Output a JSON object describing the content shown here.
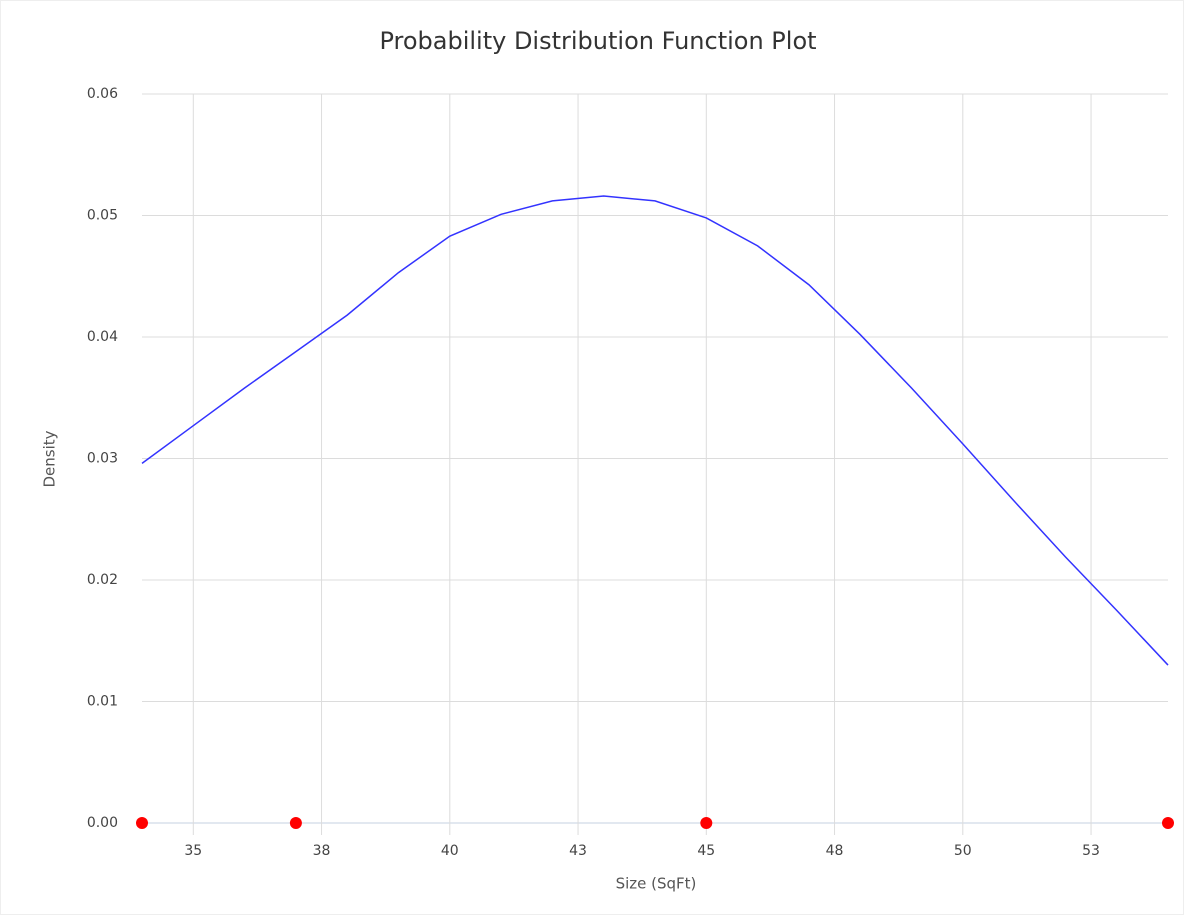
{
  "chart_data": {
    "type": "line",
    "title": "Probability Distribution Function Plot",
    "x_label": "Size (SqFt)",
    "y_label": "Density",
    "xlim": [
      34,
      54
    ],
    "ylim": [
      0,
      0.06
    ],
    "xticks": [
      35,
      {
        "value": 37.5,
        "label": "38"
      },
      40,
      {
        "value": 42.5,
        "label": "43"
      },
      45,
      {
        "value": 47.5,
        "label": "48"
      },
      50,
      {
        "value": 52.5,
        "label": "53"
      }
    ],
    "yticks": [
      {
        "value": 0,
        "label": "0.00"
      },
      0.01,
      0.02,
      0.03,
      0.04,
      0.05,
      0.06
    ],
    "grid": true,
    "series": [
      {
        "type": "line",
        "color": "#3333ff",
        "x": [
          34,
          35,
          36,
          37,
          38,
          39,
          40,
          41,
          42,
          43,
          44,
          45,
          46,
          47,
          48,
          49,
          50,
          51,
          52,
          53,
          54
        ],
        "values": [
          0.0296,
          0.0327,
          0.0358,
          0.0388,
          0.0418,
          0.0453,
          0.0483,
          0.0501,
          0.0512,
          0.0516,
          0.0512,
          0.0498,
          0.0475,
          0.0443,
          0.0402,
          0.0358,
          0.0312,
          0.0265,
          0.0219,
          0.0175,
          0.013
        ]
      },
      {
        "type": "scatter",
        "color": "#ff0000",
        "x": [
          34,
          37,
          45,
          54
        ],
        "values": [
          0,
          0,
          0,
          0
        ]
      }
    ]
  }
}
